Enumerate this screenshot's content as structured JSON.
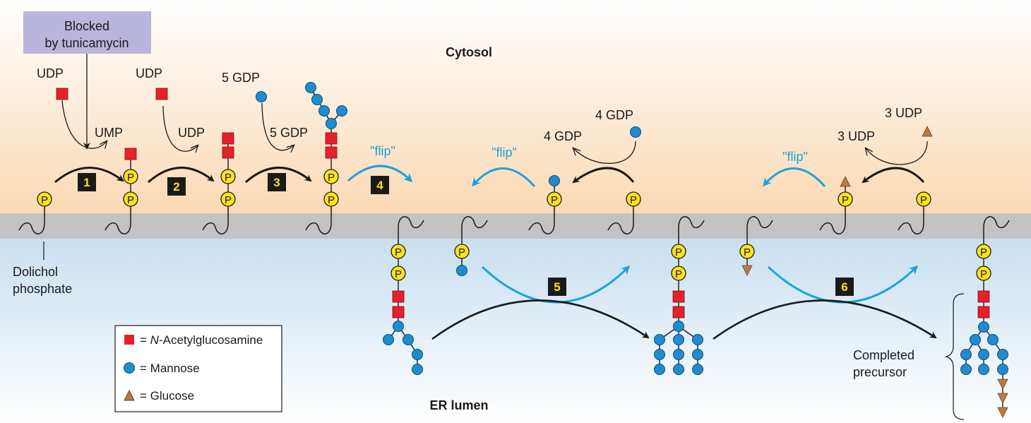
{
  "colors": {
    "cytosol_top": "#ffffff",
    "cytosol_bottom": "#fbd9b4",
    "lumen_top": "#c9dff0",
    "lumen_bottom": "#ffffff",
    "membrane": "#c3c3c3",
    "glcnac": "#e8202a",
    "mannose": "#1f8ccf",
    "glucose": "#b87a4a",
    "phosphate": "#ffe21a",
    "flip_arrow": "#1aa3dd",
    "inhibitor_box": "#bab5dd"
  },
  "regions": {
    "cytosol": "Cytosol",
    "er_lumen": "ER lumen"
  },
  "inhibitor": {
    "line1": "Blocked",
    "line2": "by tunicamycin"
  },
  "dolichol_label": {
    "line1": "Dolichol",
    "line2": "phosphate"
  },
  "phosphate_symbol": "P",
  "donors": {
    "udp_1": "UDP",
    "ump": "UMP",
    "udp_2": "UDP",
    "udp_2_out": "UDP",
    "gdp_5_in": "5 GDP",
    "gdp_5_out": "5 GDP",
    "gdp_4_in": "4 GDP",
    "gdp_4_out": "4 GDP",
    "udp_3_in": "3 UDP",
    "udp_3_out": "3 UDP"
  },
  "steps": [
    "1",
    "2",
    "3",
    "4",
    "5",
    "6"
  ],
  "flip_labels": [
    "\"flip\"",
    "\"flip\"",
    "\"flip\""
  ],
  "completed_precursor": {
    "line1": "Completed",
    "line2": "precursor"
  },
  "legend": [
    {
      "symbol": "square",
      "color_key": "glcnac",
      "prefix": "= ",
      "italic": "N",
      "text": "-Acetylglucosamine",
      "icon": "red-square-icon"
    },
    {
      "symbol": "circle",
      "color_key": "mannose",
      "prefix": "= ",
      "italic": "",
      "text": "Mannose",
      "icon": "blue-circle-icon"
    },
    {
      "symbol": "triangle",
      "color_key": "glucose",
      "prefix": "= ",
      "italic": "",
      "text": "Glucose",
      "icon": "brown-triangle-icon"
    }
  ]
}
